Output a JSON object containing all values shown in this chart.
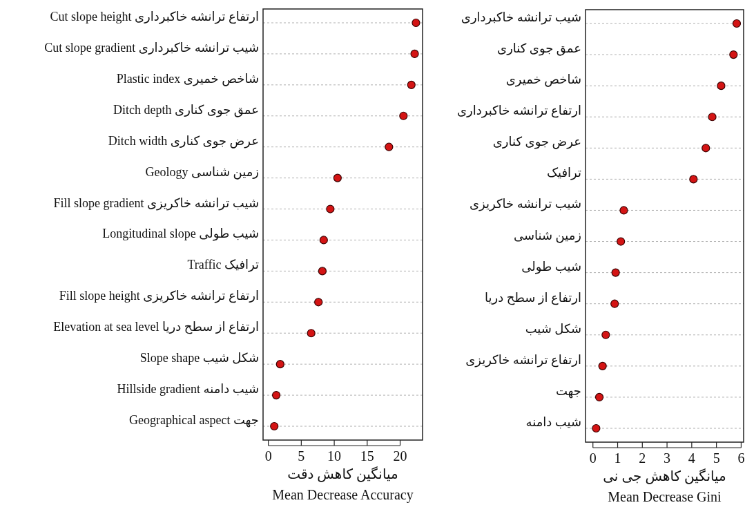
{
  "chart_data": [
    {
      "type": "scatter",
      "orientation": "horizontal",
      "categories": [
        "ارتفاع ترانشه خاکبرداری Cut slope height",
        "شیب ترانشه خاکبرداری Cut slope gradient",
        "شاخص خمیری Plastic index",
        "عمق جوی کناری Ditch depth",
        "عرض جوی کناری Ditch width",
        "زمین شناسی Geology",
        "شیب ترانشه خاکریزی Fill slope gradient",
        "شیب طولی Longitudinal slope",
        "ترافیک Traffic",
        "ارتفاع ترانشه خاکریزی Fill slope height",
        "ارتفاع از سطح دریا Elevation at sea level",
        "شکل شیب Slope shape",
        "شیب دامنه Hillside gradient",
        "جهت Geographical aspect"
      ],
      "series": [
        {
          "color": "#d41414",
          "values": [
            22.4,
            22.2,
            21.7,
            20.5,
            18.3,
            10.5,
            9.4,
            8.4,
            8.2,
            7.6,
            6.5,
            1.8,
            1.2,
            0.9
          ]
        }
      ],
      "xlim": [
        -0.8,
        23.4
      ],
      "xticks": [
        0,
        5,
        10,
        15,
        20
      ],
      "xlabel": "میانگین کاهش دقت\nMean Decrease Accuracy",
      "grid": "y",
      "marker": "circle"
    },
    {
      "type": "scatter",
      "orientation": "horizontal",
      "categories": [
        "شیب ترانشه خاکبرداری",
        "عمق جوی کناری",
        "شاخص خمیری",
        "ارتفاع ترانشه خاکبرداری",
        "عرض جوی کناری",
        "ترافیک",
        "شیب ترانشه خاکریزی",
        "زمین شناسی",
        "شیب طولی",
        "ارتفاع از سطح دریا",
        "شکل شیب",
        "ارتفاع ترانشه خاکریزی",
        "جهت",
        "شیب دامنه"
      ],
      "series": [
        {
          "color": "#d41414",
          "values": [
            5.82,
            5.69,
            5.19,
            4.83,
            4.57,
            4.07,
            1.25,
            1.13,
            0.92,
            0.88,
            0.52,
            0.39,
            0.26,
            0.13
          ]
        }
      ],
      "xlim": [
        -0.3,
        6.1
      ],
      "xticks": [
        0,
        1,
        2,
        3,
        4,
        5,
        6
      ],
      "xlabel": "میانگین کاهش جی نی\nMean Decrease Gini",
      "grid": "y",
      "marker": "circle"
    }
  ]
}
